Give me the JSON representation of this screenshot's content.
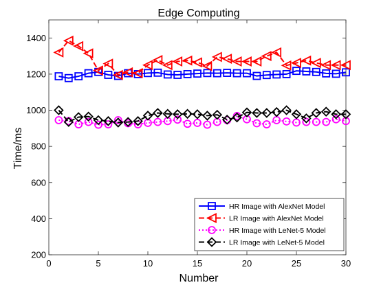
{
  "chart_data": {
    "type": "line",
    "title": "Edge Computing",
    "xlabel": "Number",
    "ylabel": "Time/ms",
    "xlim": [
      0,
      30
    ],
    "ylim": [
      200,
      1500
    ],
    "xticks": [
      0,
      5,
      10,
      15,
      20,
      25,
      30
    ],
    "yticks": [
      200,
      400,
      600,
      800,
      1000,
      1200,
      1400
    ],
    "grid": false,
    "legend_position": "bottom-right",
    "x": [
      1,
      2,
      3,
      4,
      5,
      6,
      7,
      8,
      9,
      10,
      11,
      12,
      13,
      14,
      15,
      16,
      17,
      18,
      19,
      20,
      21,
      22,
      23,
      24,
      25,
      26,
      27,
      28,
      29,
      30
    ],
    "series": [
      {
        "name": "HR Image with AlexNet Model",
        "color": "#0000ff",
        "marker": "square",
        "line_style": "solid",
        "values": [
          1188,
          1178,
          1188,
          1205,
          1212,
          1196,
          1190,
          1205,
          1200,
          1206,
          1208,
          1198,
          1196,
          1200,
          1203,
          1206,
          1205,
          1207,
          1205,
          1205,
          1190,
          1195,
          1198,
          1200,
          1218,
          1215,
          1212,
          1204,
          1202,
          1210
        ]
      },
      {
        "name": "LR Image with AlexNet Model",
        "color": "#ff0000",
        "marker": "triangle-left",
        "line_style": "dashed",
        "values": [
          1320,
          1385,
          1355,
          1315,
          1220,
          1258,
          1195,
          1210,
          1205,
          1250,
          1278,
          1250,
          1270,
          1275,
          1265,
          1245,
          1295,
          1285,
          1270,
          1270,
          1270,
          1300,
          1320,
          1248,
          1262,
          1275,
          1262,
          1250,
          1250,
          1250
        ]
      },
      {
        "name": "HR Image with LeNet-5 Model",
        "color": "#ff00ff",
        "marker": "circle",
        "line_style": "dotted",
        "values": [
          945,
          940,
          922,
          935,
          920,
          922,
          945,
          928,
          922,
          930,
          935,
          940,
          948,
          925,
          930,
          920,
          935,
          945,
          968,
          950,
          928,
          922,
          945,
          938,
          932,
          935,
          935,
          935,
          950,
          940
        ]
      },
      {
        "name": "LR Image with LeNet-5 Model",
        "color": "#000000",
        "marker": "diamond",
        "line_style": "dashed",
        "values": [
          1000,
          935,
          962,
          965,
          945,
          940,
          932,
          935,
          940,
          970,
          985,
          980,
          978,
          980,
          978,
          970,
          975,
          948,
          960,
          988,
          985,
          985,
          990,
          1000,
          978,
          955,
          985,
          992,
          978,
          978
        ]
      }
    ]
  }
}
